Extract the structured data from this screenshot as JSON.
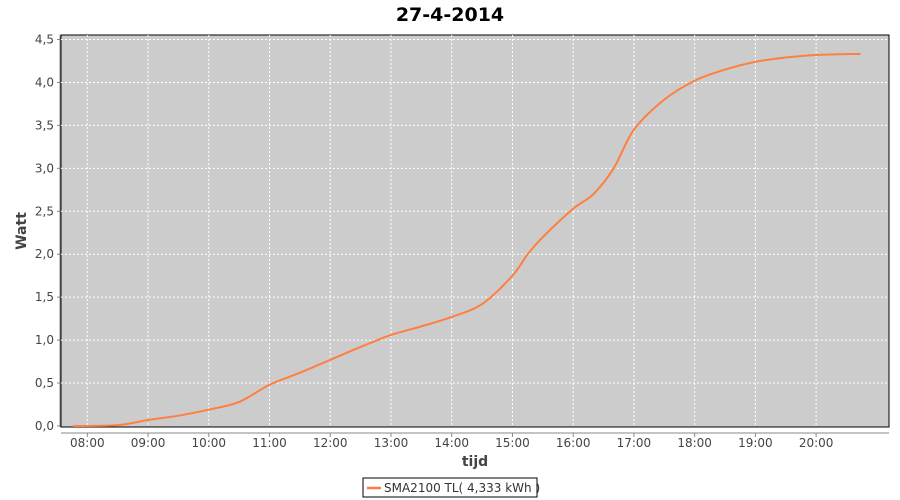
{
  "chart_data": {
    "type": "line",
    "title": "27-4-2014",
    "xlabel": "tijd",
    "ylabel": "Watt",
    "xlim": [
      "07:34",
      "21:12"
    ],
    "ylim": [
      0,
      4.5
    ],
    "x_ticks": [
      "08:00",
      "09:00",
      "10:00",
      "11:00",
      "12:00",
      "13:00",
      "14:00",
      "15:00",
      "16:00",
      "17:00",
      "18:00",
      "19:00",
      "20:00"
    ],
    "y_ticks": [
      "0,0",
      "0,5",
      "1,0",
      "1,5",
      "2,0",
      "2,5",
      "3,0",
      "3,5",
      "4,0",
      "4,5"
    ],
    "grid": true,
    "legend_position": "bottom",
    "colors": {
      "series": "#ff7f3f",
      "plot_bg": "#cccccc",
      "grid": "#ffffff"
    },
    "series": [
      {
        "name": "SMA2100 TL( 4,333 kWh )",
        "x": [
          "07:46",
          "08:30",
          "09:00",
          "09:30",
          "10:00",
          "10:30",
          "11:00",
          "11:30",
          "12:00",
          "12:30",
          "13:00",
          "13:30",
          "14:00",
          "14:30",
          "15:00",
          "15:15",
          "15:30",
          "16:00",
          "16:20",
          "16:40",
          "17:00",
          "17:30",
          "18:00",
          "18:30",
          "19:00",
          "19:30",
          "20:00",
          "20:44"
        ],
        "y": [
          0,
          0.01,
          0.07,
          0.12,
          0.19,
          0.28,
          0.48,
          0.62,
          0.77,
          0.92,
          1.06,
          1.16,
          1.27,
          1.42,
          1.75,
          2.0,
          2.2,
          2.53,
          2.7,
          3.0,
          3.45,
          3.8,
          4.02,
          4.15,
          4.24,
          4.29,
          4.32,
          4.333
        ]
      }
    ]
  }
}
